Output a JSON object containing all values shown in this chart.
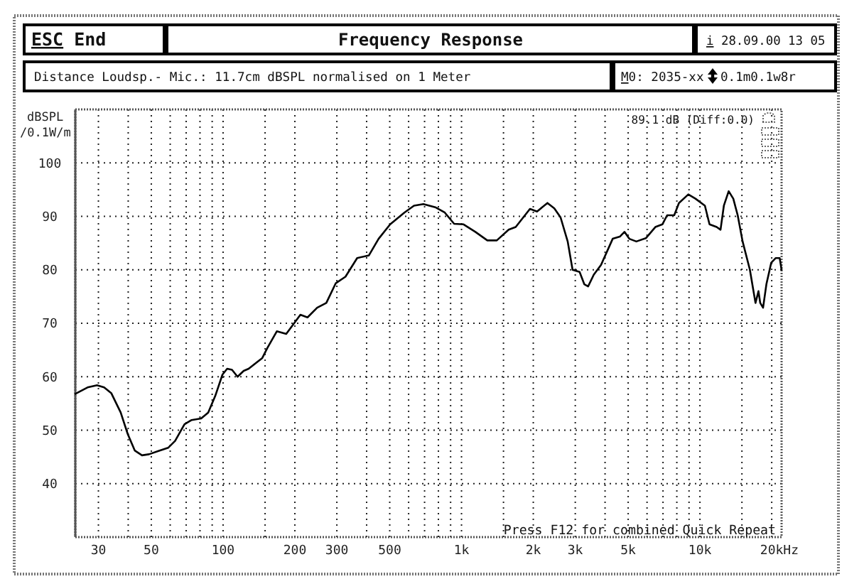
{
  "chart_data": {
    "type": "line",
    "title": "Frequency Response",
    "subtitle": "Distance Loudsp.- Mic.: 11.7cm dBSPL normalised on 1 Meter",
    "xlabel": "Hz",
    "ylabel": "dBSPL\n/0.1W/m",
    "annotations": [
      "ESC End",
      "i 28.09.00 13 05",
      "M0: 2035-xx",
      "0.1m0.1w8r",
      "89.1 dB (Diff:0.0)",
      "Press F12 for combined Quick Repeat"
    ],
    "x": [
      24,
      27,
      29.6,
      31.7,
      34,
      37.2,
      39.8,
      42.6,
      45.7,
      48.9,
      53.6,
      58.8,
      62.9,
      68.9,
      73.8,
      80.9,
      86.6,
      92.7,
      99.4,
      104,
      109,
      115,
      122,
      128,
      146,
      153,
      168,
      184,
      211,
      226,
      248,
      271,
      297,
      326,
      365,
      409,
      449,
      502,
      576,
      632,
      692,
      776,
      851,
      931,
      1020,
      1143,
      1283,
      1406,
      1577,
      1688,
      1937,
      2074,
      2293,
      2450,
      2603,
      2788,
      2923,
      3128,
      3273,
      3396,
      3589,
      3846,
      4306,
      4613,
      4825,
      5056,
      5411,
      5929,
      6501,
      6956,
      7285,
      7800,
      8166,
      8939,
      9576,
      10490,
      10970,
      11750,
      12200,
      12600,
      13200,
      13800,
      14400,
      15100,
      16200,
      16700,
      17100,
      17600,
      17900,
      18400,
      19000,
      19900,
      20800,
      21600,
      22000
    ],
    "values": [
      56.8,
      58.0,
      58.4,
      58.0,
      56.9,
      53.3,
      49.3,
      46.2,
      45.3,
      45.5,
      46.1,
      46.7,
      48.0,
      51.1,
      51.9,
      52.2,
      53.3,
      56.4,
      60.4,
      61.5,
      61.3,
      60.0,
      61.1,
      61.5,
      63.5,
      65.3,
      68.5,
      68.0,
      71.6,
      71.1,
      72.9,
      73.8,
      77.5,
      78.7,
      82.2,
      82.7,
      85.8,
      88.5,
      90.7,
      92.0,
      92.3,
      91.7,
      90.7,
      88.6,
      88.5,
      87.1,
      85.5,
      85.5,
      87.5,
      88.0,
      91.4,
      90.9,
      92.5,
      91.5,
      89.8,
      85.3,
      80.0,
      79.6,
      77.3,
      76.9,
      79.1,
      80.9,
      85.8,
      86.2,
      87.1,
      85.8,
      85.3,
      85.9,
      88.0,
      88.5,
      90.2,
      90.2,
      92.5,
      94.1,
      93.3,
      92.0,
      88.5,
      88.0,
      87.5,
      92.0,
      94.7,
      93.3,
      90.2,
      85.3,
      80.0,
      76.5,
      73.8,
      76.0,
      73.8,
      72.9,
      77.3,
      81.3,
      82.2,
      82.2,
      80.0
    ],
    "color": "#000000",
    "log": "x",
    "xlim": [
      24,
      22000
    ],
    "ylim": [
      30,
      110
    ],
    "xticks": [
      30,
      {
        "value": 40,
        "label": null
      },
      50,
      {
        "value": 60,
        "label": null
      },
      {
        "value": 70,
        "label": null
      },
      {
        "value": 80,
        "label": null
      },
      {
        "value": 90,
        "label": null
      },
      100,
      {
        "value": 150,
        "label": null
      },
      200,
      300,
      {
        "value": 400,
        "label": null
      },
      500,
      {
        "value": 600,
        "label": null
      },
      {
        "value": 700,
        "label": null
      },
      {
        "value": 800,
        "label": null
      },
      {
        "value": 900,
        "label": null
      },
      {
        "value": 1000,
        "label": "1k"
      },
      {
        "value": 1500,
        "label": null
      },
      {
        "value": 2000,
        "label": "2k"
      },
      {
        "value": 3000,
        "label": "3k"
      },
      {
        "value": 4000,
        "label": null
      },
      {
        "value": 5000,
        "label": "5k"
      },
      {
        "value": 6000,
        "label": null
      },
      {
        "value": 7000,
        "label": null
      },
      {
        "value": 8000,
        "label": null
      },
      {
        "value": 9000,
        "label": null
      },
      {
        "value": 10000,
        "label": "10k"
      },
      {
        "value": 15000,
        "label": null
      },
      {
        "value": 20000,
        "label": "20k"
      }
    ],
    "yticks": [
      40,
      50,
      60,
      70,
      80,
      90,
      100
    ],
    "grid": true
  }
}
